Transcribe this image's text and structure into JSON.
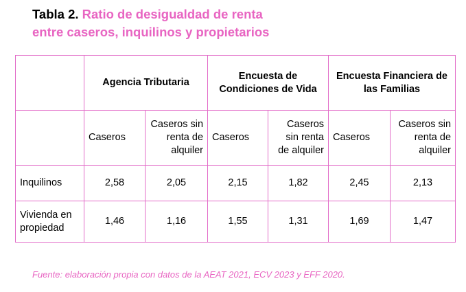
{
  "title": {
    "number": "Tabla 2.",
    "line1": "Ratio de desigualdad de renta",
    "line2": "entre caseros, inquilinos y propietarios"
  },
  "table": {
    "groups": [
      "Agencia Tributaria",
      "Encuesta de Condiciones de Vida",
      "Encuesta Financiera de las Familias"
    ],
    "subheaders": [
      "Caseros",
      "Caseros sin renta de alquiler"
    ],
    "rows": [
      {
        "label": "Inquilinos",
        "values": [
          "2,58",
          "2,05",
          "2,15",
          "1,82",
          "2,45",
          "2,13"
        ]
      },
      {
        "label": "Vivienda en propiedad",
        "values": [
          "1,46",
          "1,16",
          "1,55",
          "1,31",
          "1,69",
          "1,47"
        ]
      }
    ]
  },
  "source": "Fuente: elaboración propia con datos de la AEAT 2021, ECV 2023 y EFF 2020.",
  "colors": {
    "accent": "#e865c2",
    "border": "#e26bc8"
  }
}
